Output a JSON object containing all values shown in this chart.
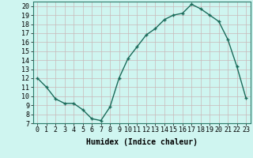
{
  "x": [
    0,
    1,
    2,
    3,
    4,
    5,
    6,
    7,
    8,
    9,
    10,
    11,
    12,
    13,
    14,
    15,
    16,
    17,
    18,
    19,
    20,
    21,
    22,
    23
  ],
  "y": [
    12,
    11,
    9.7,
    9.2,
    9.2,
    8.5,
    7.5,
    7.3,
    8.8,
    12,
    14.2,
    15.5,
    16.8,
    17.5,
    18.5,
    19.0,
    19.2,
    20.2,
    19.7,
    19.0,
    18.3,
    16.3,
    13.3,
    9.8
  ],
  "line_color": "#1a6b5a",
  "marker": "+",
  "marker_size": 3,
  "marker_linewidth": 1.0,
  "bg_color": "#cff5f0",
  "grid_color": "#c8b8b8",
  "xlabel": "Humidex (Indice chaleur)",
  "ylabel": "",
  "xlim": [
    -0.5,
    23.5
  ],
  "ylim": [
    7,
    20.5
  ],
  "xticks": [
    0,
    1,
    2,
    3,
    4,
    5,
    6,
    7,
    8,
    9,
    10,
    11,
    12,
    13,
    14,
    15,
    16,
    17,
    18,
    19,
    20,
    21,
    22,
    23
  ],
  "yticks": [
    7,
    8,
    9,
    10,
    11,
    12,
    13,
    14,
    15,
    16,
    17,
    18,
    19,
    20
  ],
  "xlabel_fontsize": 7,
  "tick_fontsize": 6,
  "linewidth": 1.0
}
